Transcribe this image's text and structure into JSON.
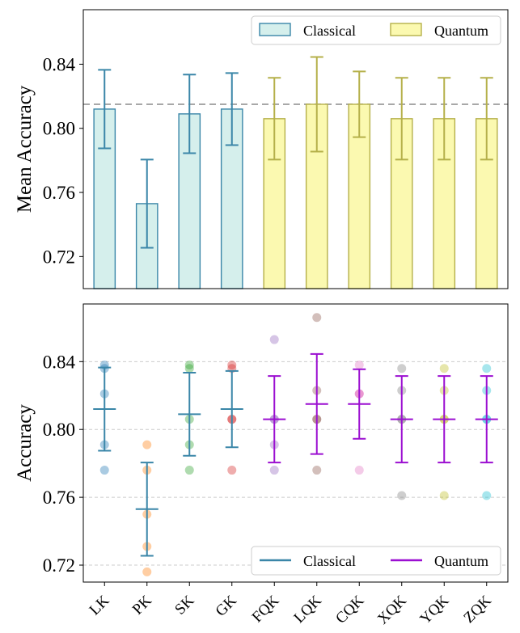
{
  "chart_data": [
    {
      "type": "bar",
      "ylabel": "Mean Accuracy",
      "ylim": [
        0.7,
        0.874
      ],
      "yticks": [
        0.72,
        0.76,
        0.8,
        0.84
      ],
      "ytick_labels": [
        "0.72",
        "0.76",
        "0.80",
        "0.84"
      ],
      "reference_line": 0.815,
      "categories": [
        "LK",
        "PK",
        "SK",
        "GK",
        "FQK",
        "LQK",
        "CQK",
        "XQK",
        "YQK",
        "ZQK"
      ],
      "values": [
        0.812,
        0.753,
        0.809,
        0.812,
        0.806,
        0.815,
        0.815,
        0.806,
        0.806,
        0.806
      ],
      "errors": [
        0.0245,
        0.0275,
        0.0245,
        0.0225,
        0.0255,
        0.0295,
        0.0205,
        0.0255,
        0.0255,
        0.0255
      ],
      "groups": [
        "Classical",
        "Classical",
        "Classical",
        "Classical",
        "Quantum",
        "Quantum",
        "Quantum",
        "Quantum",
        "Quantum",
        "Quantum"
      ],
      "legend": {
        "position": "top-right",
        "items": [
          "Classical",
          "Quantum"
        ]
      },
      "colors": {
        "classical_fill": "#d5efec",
        "classical_edge": "#3a86a8",
        "quantum_fill": "#fbf9b0",
        "quantum_edge": "#b5b04a",
        "reference": "#a8a8a8"
      }
    },
    {
      "type": "scatter",
      "ylabel": "Accuracy",
      "ylim": [
        0.71,
        0.874
      ],
      "yticks": [
        0.72,
        0.76,
        0.8,
        0.84
      ],
      "ytick_labels": [
        "0.72",
        "0.76",
        "0.80",
        "0.84"
      ],
      "grid": true,
      "categories": [
        "LK",
        "PK",
        "SK",
        "GK",
        "FQK",
        "LQK",
        "CQK",
        "XQK",
        "YQK",
        "ZQK"
      ],
      "means": [
        0.812,
        0.753,
        0.809,
        0.812,
        0.806,
        0.815,
        0.815,
        0.806,
        0.806,
        0.806
      ],
      "errors": [
        0.0245,
        0.0275,
        0.0245,
        0.0225,
        0.0255,
        0.0295,
        0.0205,
        0.0255,
        0.0255,
        0.0255
      ],
      "groups": [
        "Classical",
        "Classical",
        "Classical",
        "Classical",
        "Quantum",
        "Quantum",
        "Quantum",
        "Quantum",
        "Quantum",
        "Quantum"
      ],
      "points": [
        [
          0.838,
          0.836,
          0.821,
          0.791,
          0.776
        ],
        [
          0.791,
          0.776,
          0.75,
          0.731,
          0.716
        ],
        [
          0.838,
          0.836,
          0.806,
          0.791,
          0.776
        ],
        [
          0.838,
          0.836,
          0.806,
          0.806,
          0.776
        ],
        [
          0.853,
          0.806,
          0.806,
          0.791,
          0.776
        ],
        [
          0.866,
          0.823,
          0.806,
          0.806,
          0.776
        ],
        [
          0.838,
          0.821,
          0.821,
          0.821,
          0.776
        ],
        [
          0.836,
          0.823,
          0.806,
          0.806,
          0.761
        ],
        [
          0.836,
          0.823,
          0.806,
          0.806,
          0.761
        ],
        [
          0.836,
          0.823,
          0.806,
          0.806,
          0.761
        ]
      ],
      "point_colors": [
        "#1f77b4",
        "#ff7f0e",
        "#2ca02c",
        "#d62728",
        "#9467bd",
        "#8c564b",
        "#e377c2",
        "#7f7f7f",
        "#bcbd22",
        "#17becf"
      ],
      "legend": {
        "position": "bottom-right",
        "items": [
          "Classical",
          "Quantum"
        ]
      },
      "colors": {
        "classical": "#3a86a8",
        "quantum": "#9b0fd1",
        "grid": "#cccccc"
      }
    }
  ]
}
